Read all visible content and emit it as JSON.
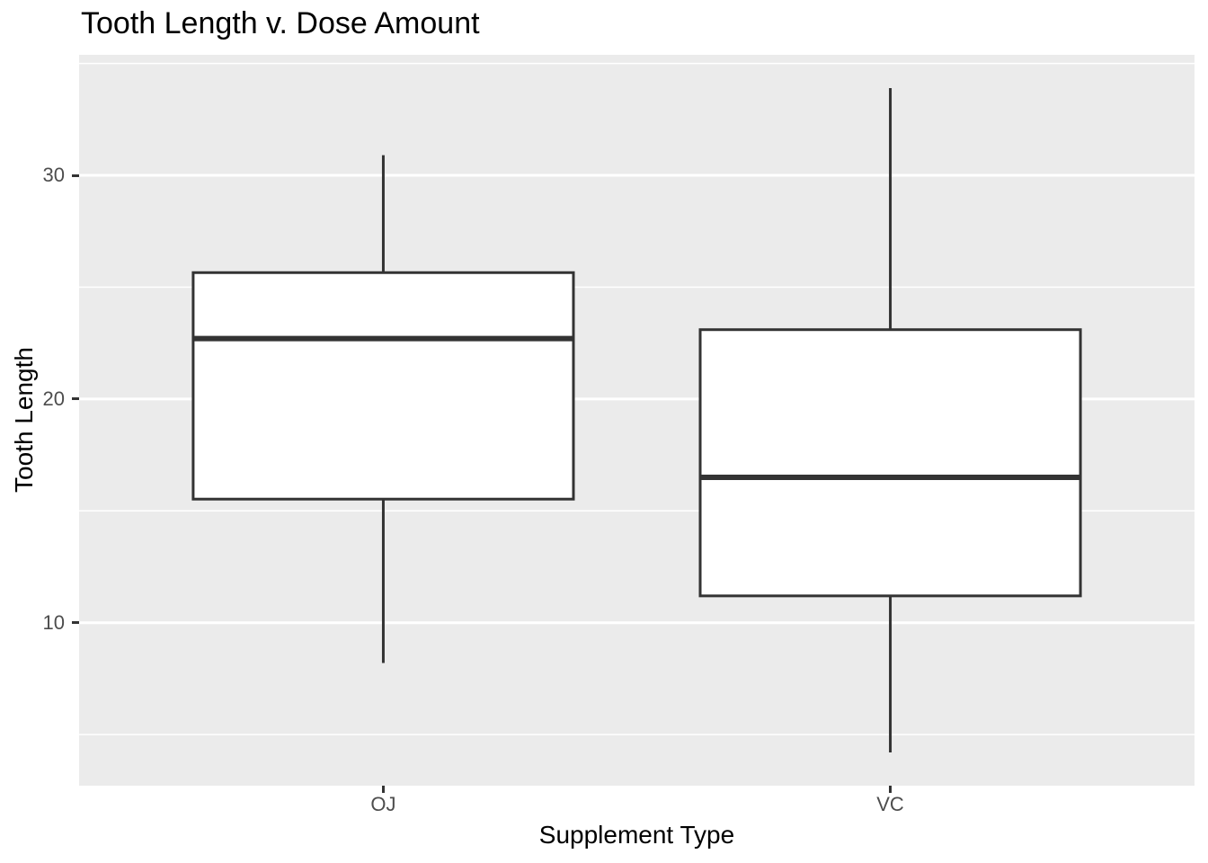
{
  "chart_data": {
    "type": "boxplot",
    "title": "Tooth Length v. Dose Amount",
    "xlabel": "Supplement Type",
    "ylabel": "Tooth Length",
    "categories": [
      "OJ",
      "VC"
    ],
    "series": [
      {
        "category": "OJ",
        "min": 8.2,
        "q1": 15.525,
        "median": 22.7,
        "q3": 25.65,
        "max": 30.9
      },
      {
        "category": "VC",
        "min": 4.2,
        "q1": 11.2,
        "median": 16.5,
        "q3": 23.1,
        "max": 33.9
      }
    ],
    "y_axis": {
      "ticks": [
        10,
        20,
        30
      ],
      "tick_labels": [
        "10",
        "20",
        "30"
      ],
      "minor_ticks": [
        5,
        15,
        25,
        35
      ],
      "range": [
        2.715,
        35.385
      ]
    },
    "x_axis": {
      "positions": [
        1,
        2
      ],
      "range": [
        0.4,
        2.6
      ],
      "box_width": 0.75
    },
    "legend": "none",
    "grid": "white major and minor horizontal gridlines on grey panel",
    "colors": {
      "panel_background": "#EBEBEB",
      "gridline": "#FFFFFF",
      "box_border": "#333333",
      "box_fill": "#FFFFFF",
      "median_line": "#333333",
      "whisker": "#333333",
      "tick_mark": "#333333",
      "axis_text": "#4D4D4D",
      "title_text": "#000000",
      "axis_title_text": "#000000"
    }
  }
}
